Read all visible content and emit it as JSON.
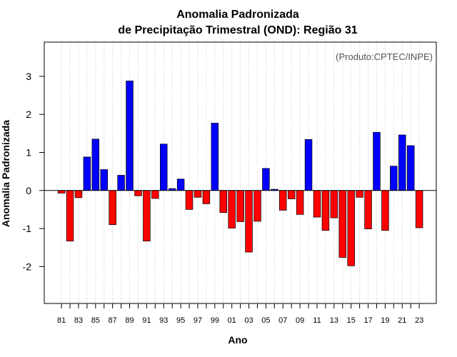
{
  "chart_data": {
    "type": "bar",
    "title": "Anomalia Padronizada",
    "subtitle": "de Precipitação Trimestral (OND): Região 31",
    "xlabel": "Ano",
    "ylabel": "Anomalia Padronizada",
    "credit": "(Produto:CPTEC/INPE)",
    "ylim": [
      -2.97,
      3.9
    ],
    "yticks": [
      -2,
      -1,
      0,
      1,
      2,
      3
    ],
    "grid": "vertical dotted",
    "positive_color": "#0000ff",
    "negative_color": "#ff0000",
    "categories": [
      "81",
      "82",
      "83",
      "84",
      "85",
      "86",
      "87",
      "88",
      "89",
      "90",
      "91",
      "92",
      "93",
      "94",
      "95",
      "96",
      "97",
      "98",
      "99",
      "00",
      "01",
      "02",
      "03",
      "04",
      "05",
      "06",
      "07",
      "08",
      "09",
      "10",
      "11",
      "12",
      "13",
      "14",
      "15",
      "16",
      "17",
      "18",
      "19",
      "20",
      "21",
      "22",
      "23"
    ],
    "x_tick_labels": [
      "81",
      "83",
      "85",
      "87",
      "89",
      "91",
      "93",
      "95",
      "97",
      "99",
      "01",
      "03",
      "05",
      "07",
      "09",
      "11",
      "13",
      "15",
      "17",
      "19",
      "21",
      "23"
    ],
    "values": [
      -0.07,
      -1.33,
      -0.19,
      0.88,
      1.35,
      0.55,
      -0.9,
      0.4,
      2.88,
      -0.14,
      -1.33,
      -0.21,
      1.22,
      0.05,
      0.3,
      -0.5,
      -0.18,
      -0.35,
      1.77,
      -0.58,
      -0.99,
      -0.82,
      -1.62,
      -0.81,
      0.58,
      0.03,
      -0.52,
      -0.22,
      -0.63,
      1.34,
      -0.7,
      -1.05,
      -0.72,
      -1.76,
      -1.98,
      -0.18,
      -1.01,
      1.53,
      -1.05,
      0.64,
      1.46,
      1.18,
      -0.98
    ]
  }
}
